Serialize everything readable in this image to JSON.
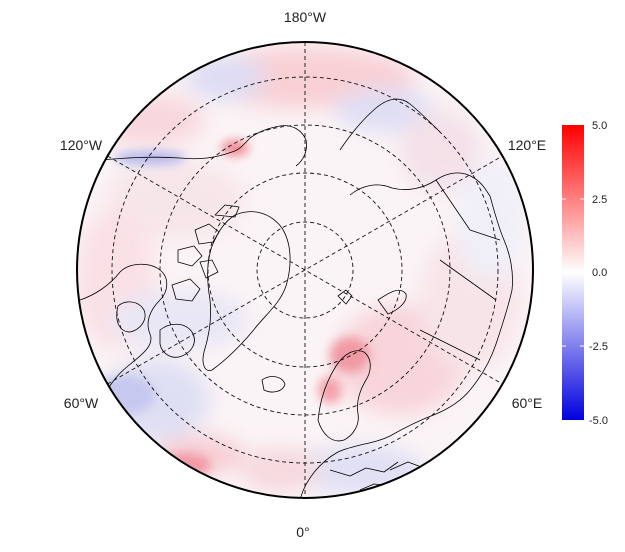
{
  "map": {
    "projection": "north-polar-stereographic",
    "longitude_labels": {
      "top": "180°W",
      "upper_left": "120°W",
      "upper_right": "120°E",
      "lower_left": "60°W",
      "lower_right": "60°E",
      "bottom": "0°"
    },
    "graticule": "dashed",
    "field": "anomaly",
    "colors": {
      "low": "#0000dd",
      "mid": "#ffffff",
      "high": "#ff0000",
      "coastline": "#000000"
    }
  },
  "colorbar": {
    "ticks": [
      "5.0",
      "2.5",
      "0.0",
      "-2.5",
      "-5.0"
    ],
    "min": -5.0,
    "max": 5.0
  }
}
